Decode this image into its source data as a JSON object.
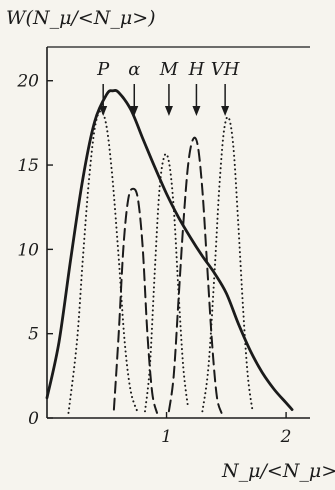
{
  "chart_data": {
    "type": "line",
    "ylabel": "W(N_μ/<N_μ>)",
    "xlabel": "N_μ/<N_μ>",
    "xlim": [
      0,
      2.2
    ],
    "ylim": [
      0,
      22
    ],
    "x_ticks": [
      1,
      2
    ],
    "y_ticks": [
      0,
      5,
      10,
      15,
      20
    ],
    "x_tick_labels": [
      "1",
      "2"
    ],
    "y_tick_labels": [
      "0",
      "5",
      "10",
      "15",
      "20"
    ],
    "grid": false,
    "markers": [
      {
        "label": "P",
        "x": 0.47
      },
      {
        "label": "α",
        "x": 0.73
      },
      {
        "label": "M",
        "x": 1.02
      },
      {
        "label": "H",
        "x": 1.25
      },
      {
        "label": "VH",
        "x": 1.49
      }
    ],
    "series": [
      {
        "style": "solid",
        "x": [
          0.0,
          0.1,
          0.2,
          0.3,
          0.4,
          0.5,
          0.55,
          0.6,
          0.7,
          0.8,
          0.9,
          1.0,
          1.1,
          1.2,
          1.3,
          1.4,
          1.5,
          1.6,
          1.7,
          1.8,
          1.9,
          2.0,
          2.05
        ],
        "y": [
          1.2,
          4.5,
          9.5,
          14.2,
          17.6,
          19.2,
          19.4,
          19.3,
          18.3,
          16.6,
          14.9,
          13.3,
          11.9,
          10.7,
          9.6,
          8.6,
          7.4,
          5.6,
          4.0,
          2.7,
          1.7,
          0.9,
          0.5
        ]
      },
      {
        "style": "dotted",
        "x": [
          0.18,
          0.25,
          0.3,
          0.35,
          0.4,
          0.45,
          0.5,
          0.55,
          0.6,
          0.65,
          0.7,
          0.76
        ],
        "y": [
          0.3,
          4.5,
          9.5,
          14.0,
          17.2,
          18.2,
          17.2,
          14.0,
          9.5,
          4.5,
          1.6,
          0.3
        ]
      },
      {
        "style": "dashed",
        "x": [
          0.56,
          0.6,
          0.64,
          0.68,
          0.72,
          0.76,
          0.8,
          0.84,
          0.88,
          0.92
        ],
        "y": [
          0.5,
          5.0,
          10.2,
          13.0,
          13.6,
          13.0,
          10.2,
          5.0,
          1.5,
          0.3
        ]
      },
      {
        "style": "dotted",
        "x": [
          0.82,
          0.86,
          0.9,
          0.94,
          0.98,
          1.02,
          1.06,
          1.1,
          1.14,
          1.18
        ],
        "y": [
          0.4,
          3.0,
          8.5,
          13.5,
          15.5,
          15.2,
          12.5,
          7.5,
          3.0,
          0.6
        ]
      },
      {
        "style": "dashed",
        "x": [
          1.02,
          1.06,
          1.1,
          1.14,
          1.18,
          1.22,
          1.26,
          1.3,
          1.34,
          1.38,
          1.42,
          1.46
        ],
        "y": [
          0.4,
          2.5,
          7.0,
          11.5,
          15.0,
          16.5,
          16.2,
          13.5,
          9.0,
          4.5,
          1.3,
          0.3
        ]
      },
      {
        "style": "dotted",
        "x": [
          1.3,
          1.35,
          1.4,
          1.44,
          1.48,
          1.52,
          1.56,
          1.6,
          1.64,
          1.68,
          1.72
        ],
        "y": [
          0.4,
          3.0,
          8.5,
          13.5,
          17.0,
          17.8,
          16.0,
          11.5,
          6.5,
          2.5,
          0.4
        ]
      }
    ]
  }
}
